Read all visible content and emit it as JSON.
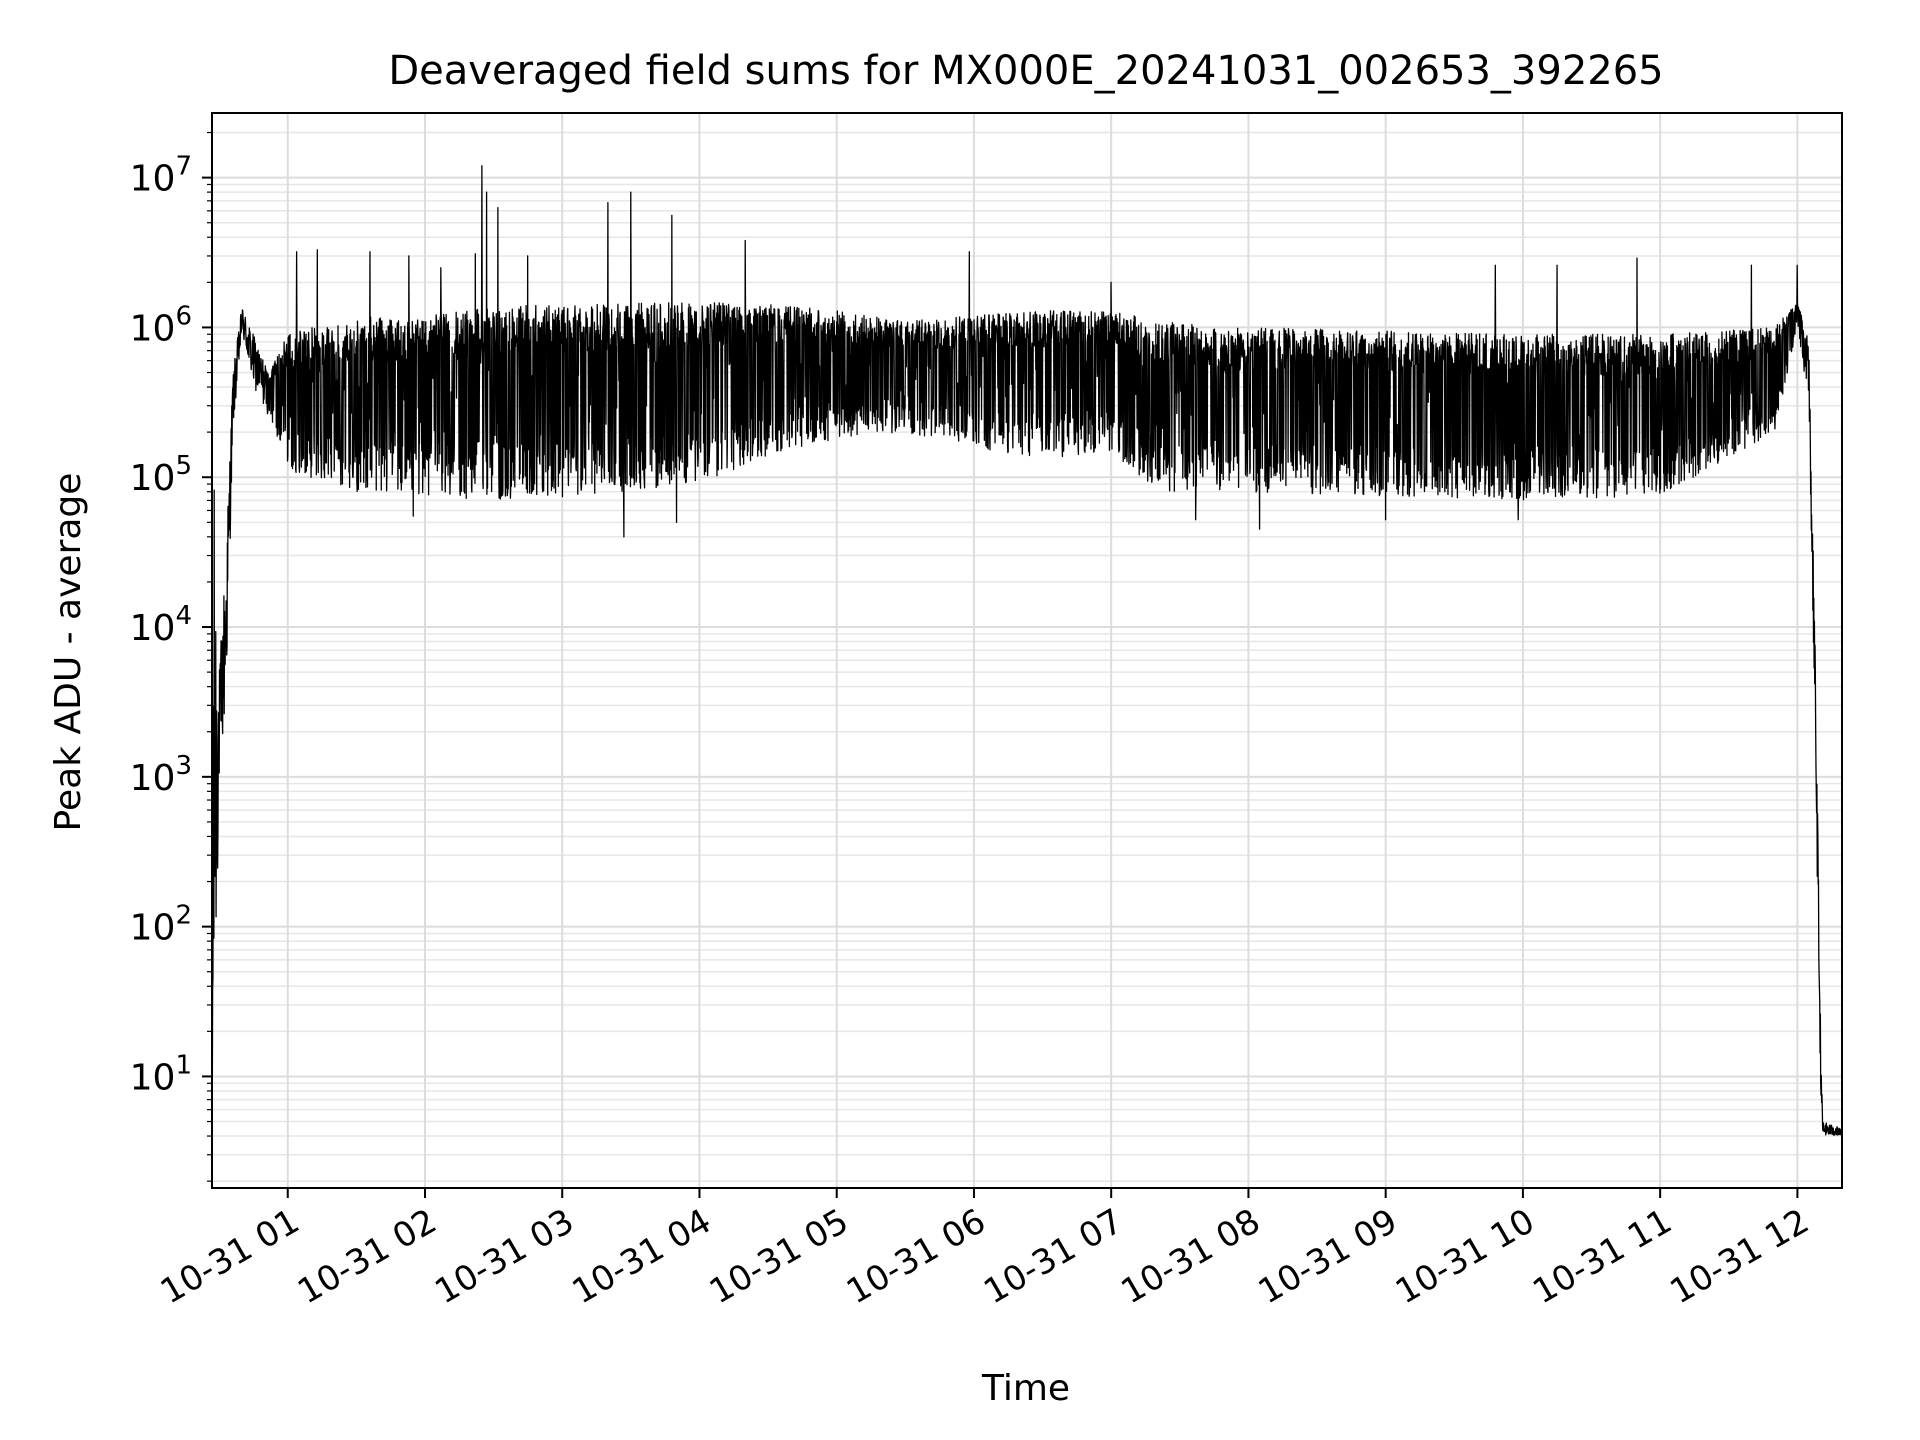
{
  "chart_data": {
    "type": "line",
    "title": "Deaveraged field sums for MX000E_20241031_002653_392265",
    "xlabel": "Time",
    "ylabel": "Peak ADU - average",
    "yscale": "log",
    "ylim": [
      1.8,
      27000000
    ],
    "xlim": [
      "2024-10-31 00:26:53",
      "2024-10-31 12:19:30"
    ],
    "grid": true,
    "line_color": "#000000",
    "x_ticks": [
      {
        "value": "2024-10-31 01:00",
        "label": "10-31 01"
      },
      {
        "value": "2024-10-31 02:00",
        "label": "10-31 02"
      },
      {
        "value": "2024-10-31 03:00",
        "label": "10-31 03"
      },
      {
        "value": "2024-10-31 04:00",
        "label": "10-31 04"
      },
      {
        "value": "2024-10-31 05:00",
        "label": "10-31 05"
      },
      {
        "value": "2024-10-31 06:00",
        "label": "10-31 06"
      },
      {
        "value": "2024-10-31 07:00",
        "label": "10-31 07"
      },
      {
        "value": "2024-10-31 08:00",
        "label": "10-31 08"
      },
      {
        "value": "2024-10-31 09:00",
        "label": "10-31 09"
      },
      {
        "value": "2024-10-31 10:00",
        "label": "10-31 10"
      },
      {
        "value": "2024-10-31 11:00",
        "label": "10-31 11"
      },
      {
        "value": "2024-10-31 12:00",
        "label": "10-31 12"
      }
    ],
    "y_ticks": [
      {
        "value": 10,
        "base": "10",
        "exp": "1"
      },
      {
        "value": 100,
        "base": "10",
        "exp": "2"
      },
      {
        "value": 1000,
        "base": "10",
        "exp": "3"
      },
      {
        "value": 10000,
        "base": "10",
        "exp": "4"
      },
      {
        "value": 100000,
        "base": "10",
        "exp": "5"
      },
      {
        "value": 1000000,
        "base": "10",
        "exp": "6"
      },
      {
        "value": 10000000,
        "base": "10",
        "exp": "7"
      }
    ],
    "series": [
      {
        "envelope": [
          {
            "t": "2024-10-31 00:26:53",
            "low": 2,
            "high": 2
          },
          {
            "t": "2024-10-31 00:27:30",
            "low": 4,
            "high": 160000
          },
          {
            "t": "2024-10-31 00:30:00",
            "low": 800,
            "high": 5000
          },
          {
            "t": "2024-10-31 00:33:00",
            "low": 3000,
            "high": 35000
          },
          {
            "t": "2024-10-31 00:36:00",
            "low": 200000,
            "high": 500000
          },
          {
            "t": "2024-10-31 00:40:00",
            "low": 900000,
            "high": 1400000
          },
          {
            "t": "2024-10-31 00:45:00",
            "low": 400000,
            "high": 900000
          },
          {
            "t": "2024-10-31 00:52:00",
            "low": 250000,
            "high": 500000
          },
          {
            "t": "2024-10-31 01:00:00",
            "low": 110000,
            "high": 900000
          },
          {
            "t": "2024-10-31 01:30:00",
            "low": 80000,
            "high": 1200000
          },
          {
            "t": "2024-10-31 01:55:00",
            "low": 80000,
            "high": 1100000
          },
          {
            "t": "2024-10-31 02:00:00",
            "low": 75000,
            "high": 1200000
          },
          {
            "t": "2024-10-31 02:30:00",
            "low": 70000,
            "high": 1400000
          },
          {
            "t": "2024-10-31 03:00:00",
            "low": 70000,
            "high": 1400000
          },
          {
            "t": "2024-10-31 03:30:00",
            "low": 80000,
            "high": 1450000
          },
          {
            "t": "2024-10-31 04:00:00",
            "low": 90000,
            "high": 1500000
          },
          {
            "t": "2024-10-31 04:30:00",
            "low": 140000,
            "high": 1450000
          },
          {
            "t": "2024-10-31 05:00:00",
            "low": 180000,
            "high": 1300000
          },
          {
            "t": "2024-10-31 05:30:00",
            "low": 200000,
            "high": 1100000
          },
          {
            "t": "2024-10-31 06:00:00",
            "low": 160000,
            "high": 1200000
          },
          {
            "t": "2024-10-31 06:30:00",
            "low": 130000,
            "high": 1300000
          },
          {
            "t": "2024-10-31 07:00:00",
            "low": 150000,
            "high": 1300000
          },
          {
            "t": "2024-10-31 07:20:00",
            "low": 80000,
            "high": 1100000
          },
          {
            "t": "2024-10-31 08:00:00",
            "low": 80000,
            "high": 1000000
          },
          {
            "t": "2024-10-31 09:00:00",
            "low": 75000,
            "high": 950000
          },
          {
            "t": "2024-10-31 10:00:00",
            "low": 70000,
            "high": 900000
          },
          {
            "t": "2024-10-31 11:00:00",
            "low": 75000,
            "high": 900000
          },
          {
            "t": "2024-10-31 11:50:00",
            "low": 200000,
            "high": 1000000
          },
          {
            "t": "2024-10-31 12:00:00",
            "low": 1000000,
            "high": 1500000
          },
          {
            "t": "2024-10-31 12:05:00",
            "low": 300000,
            "high": 800000
          },
          {
            "t": "2024-10-31 12:08:00",
            "low": 1000,
            "high": 5000
          },
          {
            "t": "2024-10-31 12:10:00",
            "low": 10,
            "high": 30
          },
          {
            "t": "2024-10-31 12:11:00",
            "low": 4,
            "high": 5
          },
          {
            "t": "2024-10-31 12:19:30",
            "low": 4,
            "high": 4.5
          }
        ],
        "spikes": [
          {
            "t": "2024-10-31 01:04:00",
            "value": 3200000
          },
          {
            "t": "2024-10-31 01:13:00",
            "value": 3300000
          },
          {
            "t": "2024-10-31 01:36:00",
            "value": 3200000
          },
          {
            "t": "2024-10-31 01:53:00",
            "value": 3000000
          },
          {
            "t": "2024-10-31 02:07:00",
            "value": 2500000
          },
          {
            "t": "2024-10-31 02:22:00",
            "value": 3100000
          },
          {
            "t": "2024-10-31 02:25:00",
            "value": 12000000
          },
          {
            "t": "2024-10-31 02:27:00",
            "value": 8000000
          },
          {
            "t": "2024-10-31 02:32:00",
            "value": 6300000
          },
          {
            "t": "2024-10-31 02:45:00",
            "value": 3000000
          },
          {
            "t": "2024-10-31 03:20:00",
            "value": 6800000
          },
          {
            "t": "2024-10-31 03:30:00",
            "value": 8000000
          },
          {
            "t": "2024-10-31 03:48:00",
            "value": 5600000
          },
          {
            "t": "2024-10-31 04:20:00",
            "value": 3800000
          },
          {
            "t": "2024-10-31 05:58:00",
            "value": 3200000
          },
          {
            "t": "2024-10-31 07:00:00",
            "value": 2000000
          },
          {
            "t": "2024-10-31 09:48:00",
            "value": 2600000
          },
          {
            "t": "2024-10-31 10:15:00",
            "value": 2600000
          },
          {
            "t": "2024-10-31 10:50:00",
            "value": 2900000
          },
          {
            "t": "2024-10-31 11:40:00",
            "value": 2600000
          },
          {
            "t": "2024-10-31 12:00:00",
            "value": 2600000
          }
        ],
        "dips": [
          {
            "t": "2024-10-31 01:55:00",
            "value": 55000
          },
          {
            "t": "2024-10-31 03:27:00",
            "value": 40000
          },
          {
            "t": "2024-10-31 03:50:00",
            "value": 50000
          },
          {
            "t": "2024-10-31 07:37:00",
            "value": 52000
          },
          {
            "t": "2024-10-31 08:05:00",
            "value": 45000
          },
          {
            "t": "2024-10-31 09:00:00",
            "value": 52000
          },
          {
            "t": "2024-10-31 09:58:00",
            "value": 52000
          }
        ]
      }
    ]
  }
}
